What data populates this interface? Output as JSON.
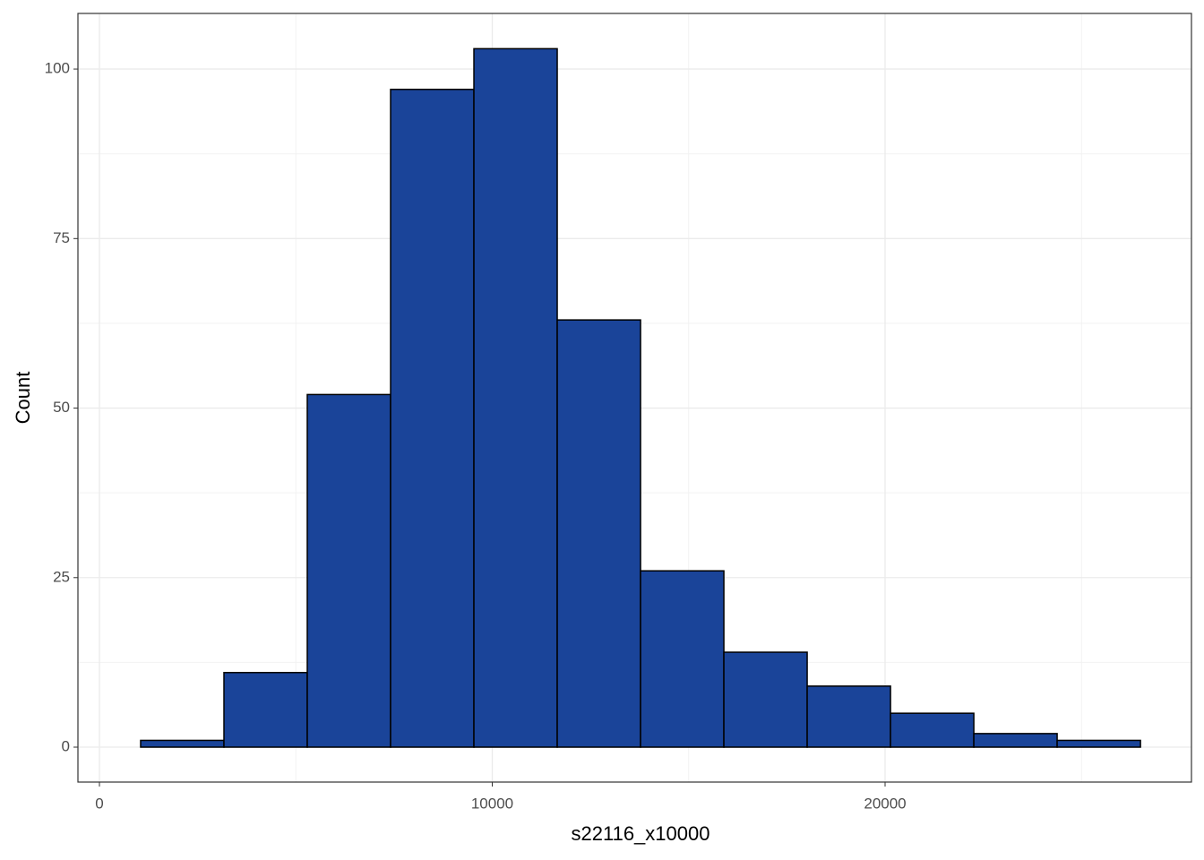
{
  "chart_data": {
    "type": "histogram",
    "x_label": "s22116_x10000",
    "y_label": "Count",
    "bins": [
      1049,
      3170,
      5291,
      7412,
      9533,
      11654,
      13775,
      15896,
      18017,
      20138,
      22259,
      24380,
      26501
    ],
    "values": [
      1,
      11,
      52,
      97,
      103,
      63,
      26,
      14,
      9,
      5,
      2,
      1
    ],
    "color": "#1a4499",
    "xlim": [
      -547,
      27799
    ],
    "xticks": [
      0,
      10000,
      20000
    ],
    "ylim": [
      -5.15,
      108.2
    ],
    "yticks": [
      0,
      25,
      50,
      75,
      100
    ],
    "grid": true
  }
}
